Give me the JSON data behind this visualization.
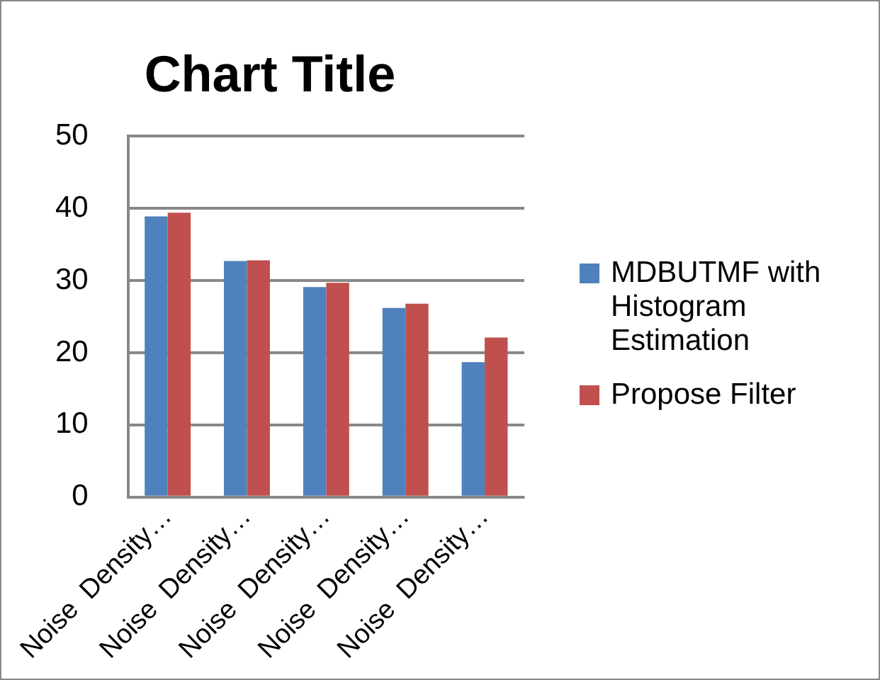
{
  "chart_data": {
    "type": "bar",
    "title": "Chart Title",
    "categories": [
      "Noise  Density…",
      "Noise  Density…",
      "Noise  Density…",
      "Noise  Density…",
      "Noise  Density…"
    ],
    "series": [
      {
        "name": "MDBUTMF with  Histogram Estimation",
        "color": "#4f81bd",
        "values": [
          38.9,
          32.7,
          29.1,
          26.2,
          18.7
        ]
      },
      {
        "name": "Propose Filter",
        "color": "#c0504d",
        "values": [
          39.4,
          32.8,
          29.7,
          26.8,
          22.1
        ]
      }
    ],
    "ylim": [
      0,
      50
    ],
    "yticks": [
      0,
      10,
      20,
      30,
      40,
      50
    ],
    "grid": "y",
    "legend": "right"
  }
}
